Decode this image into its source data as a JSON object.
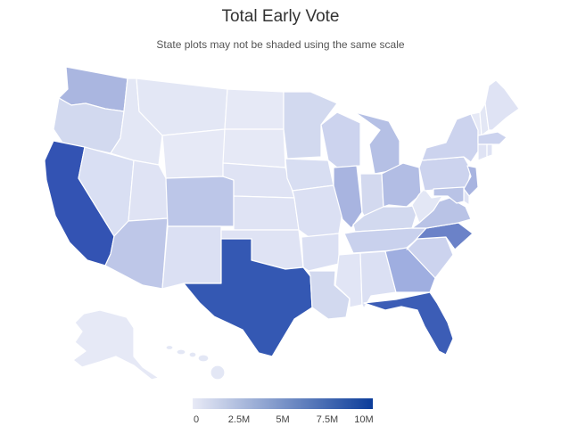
{
  "title": "Total Early Vote",
  "subtitle": "State plots may not be shaded using the same scale",
  "legend": {
    "ticks": [
      "0",
      "2.5M",
      "5M",
      "7.5M",
      "10M"
    ],
    "min_color": "#e8eaf6",
    "max_color": "#0c3d9a"
  },
  "states": [
    {
      "id": "WA",
      "color": "#aab6e0"
    },
    {
      "id": "OR",
      "color": "#d2d9ef"
    },
    {
      "id": "CA",
      "color": "#3353b3"
    },
    {
      "id": "NV",
      "color": "#d9dff3"
    },
    {
      "id": "ID",
      "color": "#e3e7f5"
    },
    {
      "id": "MT",
      "color": "#e3e7f5"
    },
    {
      "id": "WY",
      "color": "#e6e9f6"
    },
    {
      "id": "UT",
      "color": "#dfe3f4"
    },
    {
      "id": "AZ",
      "color": "#bec7e8"
    },
    {
      "id": "CO",
      "color": "#bcc6e8"
    },
    {
      "id": "NM",
      "color": "#dbe0f3"
    },
    {
      "id": "ND",
      "color": "#e6e9f6"
    },
    {
      "id": "SD",
      "color": "#e6e9f6"
    },
    {
      "id": "NE",
      "color": "#dfe3f4"
    },
    {
      "id": "KS",
      "color": "#dfe3f4"
    },
    {
      "id": "OK",
      "color": "#dfe3f4"
    },
    {
      "id": "TX",
      "color": "#3458b3"
    },
    {
      "id": "MN",
      "color": "#d2d9ef"
    },
    {
      "id": "IA",
      "color": "#d8def2"
    },
    {
      "id": "MO",
      "color": "#dbe0f3"
    },
    {
      "id": "AR",
      "color": "#dbe0f3"
    },
    {
      "id": "LA",
      "color": "#d2d9ef"
    },
    {
      "id": "WI",
      "color": "#ccd3ee"
    },
    {
      "id": "IL",
      "color": "#a8b4e0"
    },
    {
      "id": "MI",
      "color": "#b5c0e5"
    },
    {
      "id": "IN",
      "color": "#d3d9ef"
    },
    {
      "id": "OH",
      "color": "#b2bde4"
    },
    {
      "id": "KY",
      "color": "#d2d9ef"
    },
    {
      "id": "TN",
      "color": "#c9d1ed"
    },
    {
      "id": "MS",
      "color": "#e1e5f5"
    },
    {
      "id": "AL",
      "color": "#dbe0f3"
    },
    {
      "id": "GA",
      "color": "#9faee0"
    },
    {
      "id": "FL",
      "color": "#3c5db6"
    },
    {
      "id": "SC",
      "color": "#ccd3ee"
    },
    {
      "id": "NC",
      "color": "#6b82c8"
    },
    {
      "id": "VA",
      "color": "#b9c3e6"
    },
    {
      "id": "WV",
      "color": "#e3e7f5"
    },
    {
      "id": "PA",
      "color": "#ccd3ee"
    },
    {
      "id": "NY",
      "color": "#ccd3ee"
    },
    {
      "id": "NJ",
      "color": "#a8b4e0"
    },
    {
      "id": "DE",
      "color": "#dfe3f4"
    },
    {
      "id": "MD",
      "color": "#b9c3e6"
    },
    {
      "id": "VT",
      "color": "#e6e9f6"
    },
    {
      "id": "NH",
      "color": "#e3e7f5"
    },
    {
      "id": "ME",
      "color": "#dfe3f4"
    },
    {
      "id": "MA",
      "color": "#ccd3ee"
    },
    {
      "id": "CT",
      "color": "#dfe3f4"
    },
    {
      "id": "RI",
      "color": "#dfe3f4"
    },
    {
      "id": "AK",
      "color": "#e6e9f6"
    },
    {
      "id": "HI",
      "color": "#e3e7f5"
    }
  ]
}
